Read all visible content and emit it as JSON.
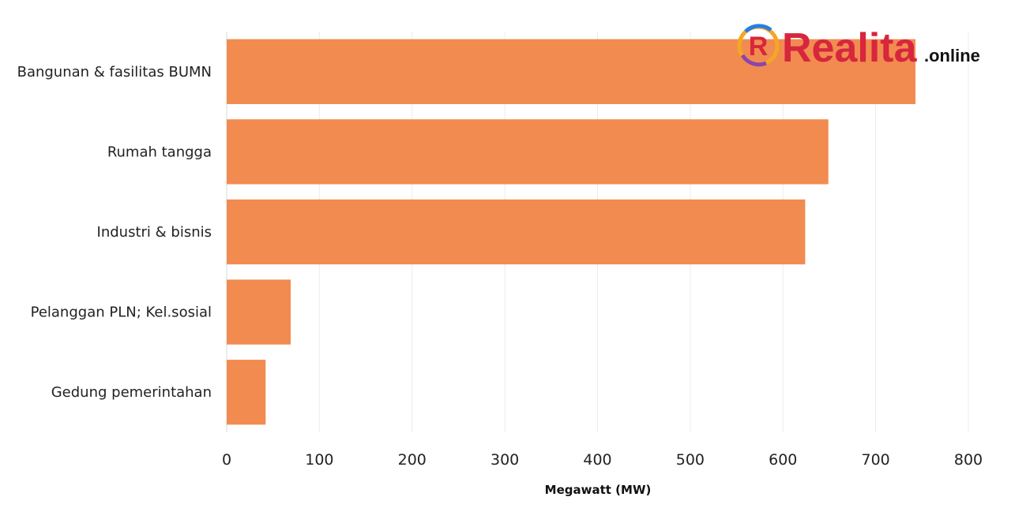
{
  "chart_data": {
    "type": "bar",
    "orientation": "horizontal",
    "categories": [
      "Bangunan & fasilitas BUMN",
      "Rumah tangga",
      "Industri & bisnis",
      "Pelanggan PLN; Kel.sosial",
      "Gedung pemerintahan"
    ],
    "values": [
      743,
      649,
      624,
      69,
      42
    ],
    "xlabel": "Megawatt (MW)",
    "ylabel": "",
    "xlim": [
      0,
      800
    ],
    "xticks": [
      0,
      100,
      200,
      300,
      400,
      500,
      600,
      700,
      800
    ],
    "grid": "vertical",
    "legend": "none",
    "bar_color": "#f28b50"
  },
  "watermark": {
    "name": "Realita",
    "suffix": ".online",
    "colors": {
      "text": "#d7263d",
      "suffix": "#111111"
    }
  }
}
